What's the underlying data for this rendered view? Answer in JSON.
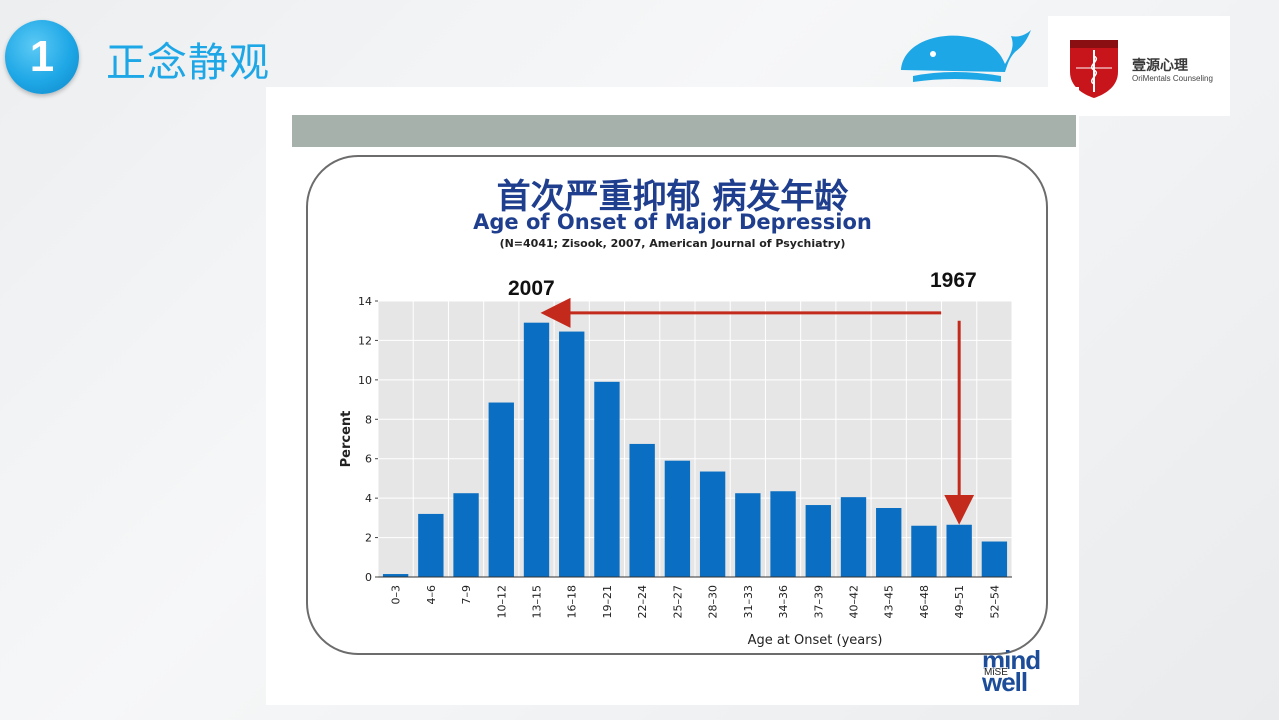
{
  "slide": {
    "number": "1",
    "title": "正念静观"
  },
  "brand": {
    "whale_icon": "whale-icon",
    "partner_icon": "caduceus-shield-icon",
    "partner_name_cn": "壹源心理",
    "partner_name_en": "OriMentals Counseling",
    "partner_shield_text": "OriMentals AUC ORI TAS"
  },
  "figure": {
    "mind_logo": "mind well",
    "mind_logo_sub": "MiSE"
  },
  "chart_data": {
    "type": "bar",
    "title": "首次严重抑郁 病发年龄",
    "subtitle": "Age of Onset of Major Depression",
    "source": "(N=4041; Zisook, 2007, American Journal of Psychiatry)",
    "xlabel": "Age at Onset (years)",
    "ylabel": "Percent",
    "ylim": [
      0,
      14
    ],
    "yticks": [
      0,
      2,
      4,
      6,
      8,
      10,
      12,
      14
    ],
    "categories": [
      "0–3",
      "4–6",
      "7–9",
      "10–12",
      "13–15",
      "16–18",
      "19–21",
      "22–24",
      "25–27",
      "28–30",
      "31–33",
      "34–36",
      "37–39",
      "40–42",
      "43–45",
      "46–48",
      "49–51",
      "52–54"
    ],
    "values": [
      0.15,
      3.2,
      4.25,
      8.85,
      12.9,
      12.45,
      9.9,
      6.75,
      5.9,
      5.35,
      4.25,
      4.35,
      3.65,
      4.05,
      3.5,
      2.6,
      2.65,
      1.8
    ],
    "bar_color": "#0a6fc2",
    "grid": true,
    "annotations": [
      {
        "label": "2007",
        "points_to": "13–15"
      },
      {
        "label": "1967",
        "points_to": "49–51"
      }
    ],
    "arrow_color": "#c32a1c"
  }
}
